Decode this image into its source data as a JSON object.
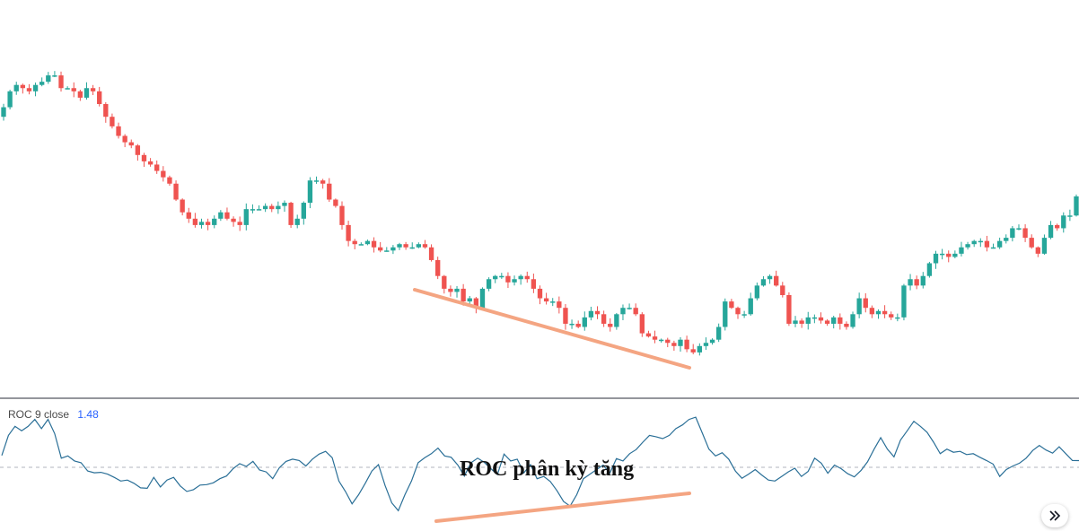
{
  "indicator": {
    "name": "ROC",
    "length": "9",
    "source": "close",
    "value": "1.48"
  },
  "annotation": "ROC phân kỳ tăng",
  "icons": {
    "scroll_to_realtime": "double-chevron-right-icon"
  },
  "colors": {
    "up": "#26a69a",
    "down": "#ef5350",
    "roc_line": "#2a6f97",
    "zero_line": "#b2b5be",
    "divergence_line": "#f4a582",
    "separator": "#2a2e39"
  },
  "chart_data": [
    {
      "type": "candlestick",
      "title": "",
      "note": "Price pane; no price axis labels visible. Values are relative price levels (0-100).",
      "closes": [
        79,
        84,
        86,
        85,
        84,
        86,
        87,
        89,
        89,
        85,
        85,
        84,
        82,
        85,
        84,
        80,
        76,
        73,
        70,
        68,
        67,
        64,
        62,
        61,
        59,
        57,
        55,
        50,
        46,
        44,
        42,
        43,
        42,
        44,
        46,
        44,
        43,
        42,
        47,
        47,
        47,
        48,
        47,
        48,
        49,
        42,
        44,
        49,
        56,
        56,
        55,
        50,
        48,
        42,
        37,
        36,
        36,
        37,
        35,
        34,
        34,
        35,
        36,
        35,
        35,
        36,
        35,
        31,
        26,
        22,
        21,
        22,
        18,
        19,
        16,
        22,
        25,
        26,
        26,
        24,
        25,
        26,
        25,
        22,
        19,
        18,
        18,
        16,
        11,
        11,
        10,
        13,
        15,
        14,
        11,
        10,
        14,
        16,
        16,
        14,
        8,
        7,
        6,
        6,
        5,
        4,
        6,
        3,
        2,
        4,
        5,
        6,
        10,
        18,
        16,
        14,
        14,
        19,
        23,
        25,
        26,
        23,
        20,
        11,
        12,
        11,
        13,
        13,
        12,
        11,
        13,
        11,
        10,
        14,
        19,
        16,
        14,
        15,
        14,
        13,
        13,
        23,
        25,
        23,
        26,
        30,
        33,
        33,
        32,
        33,
        35,
        36,
        37,
        37,
        35,
        35,
        37,
        38,
        41,
        41,
        38,
        35,
        33,
        38,
        42,
        41,
        45,
        45,
        51
      ],
      "ylim": [
        0,
        100
      ]
    },
    {
      "type": "line",
      "title": "ROC 9 close",
      "series": [
        {
          "name": "ROC",
          "values": [
            2.6,
            7.0,
            9.0,
            8.0,
            9.0,
            10.5,
            8.5,
            10.5,
            7.4,
            2.0,
            2.5,
            1.4,
            1.0,
            -0.8,
            -1.2,
            -1.1,
            -1.5,
            -2.2,
            -3.0,
            -2.8,
            -3.5,
            -4.5,
            -4.6,
            -2.2,
            -4.3,
            -2.8,
            -2.2,
            -4.1,
            -5.3,
            -4.9,
            -3.9,
            -3.8,
            -3.4,
            -2.5,
            -1.9,
            -0.3,
            0.8,
            0.2,
            1.3,
            -0.6,
            -1.0,
            -2.5,
            -0.1,
            1.3,
            1.8,
            1.5,
            0.3,
            1.8,
            2.9,
            3.5,
            2.1,
            -3.0,
            -5.3,
            -8.0,
            -6.0,
            -3.5,
            -0.8,
            0.6,
            -4.0,
            -7.8,
            -9.5,
            -6.0,
            -3.0,
            1.0,
            2.1,
            3.0,
            4.2,
            2.5,
            2.2,
            0.5,
            -1.9,
            1.0,
            2.0,
            1.1,
            -0.3,
            -1.6,
            2.9,
            1.4,
            1.8,
            -1.2,
            0.6,
            -2.5,
            -2.0,
            -3.1,
            -5.1,
            -7.5,
            -8.5,
            -6.0,
            -2.5,
            -1.5,
            -0.5,
            0.5,
            -1.3,
            1.9,
            1.4,
            3.0,
            3.9,
            5.5,
            7.0,
            6.7,
            6.3,
            7.0,
            8.5,
            9.3,
            10.5,
            11.0,
            7.5,
            4.0,
            2.5,
            3.2,
            1.8,
            -0.8,
            -2.4,
            -1.5,
            -0.5,
            -1.7,
            -2.8,
            -3.0,
            -2.0,
            -1.0,
            -0.2,
            -2.0,
            -0.9,
            2.0,
            0.9,
            -1.3,
            0.5,
            -0.3,
            -1.4,
            -2.1,
            -0.7,
            1.2,
            4.0,
            6.5,
            4.0,
            2.3,
            6.0,
            8.0,
            10.1,
            9.0,
            7.7,
            5.5,
            3.0,
            4.0,
            3.3,
            3.5,
            2.8,
            3.0,
            2.2,
            1.5,
            0.7,
            -2.0,
            -0.5,
            0.3,
            0.9,
            2.0,
            3.7,
            4.8,
            3.8,
            3.1,
            4.5,
            3.0,
            1.5,
            1.48
          ]
        }
      ],
      "zero_line": 0,
      "ylim": [
        -12,
        12
      ]
    }
  ]
}
